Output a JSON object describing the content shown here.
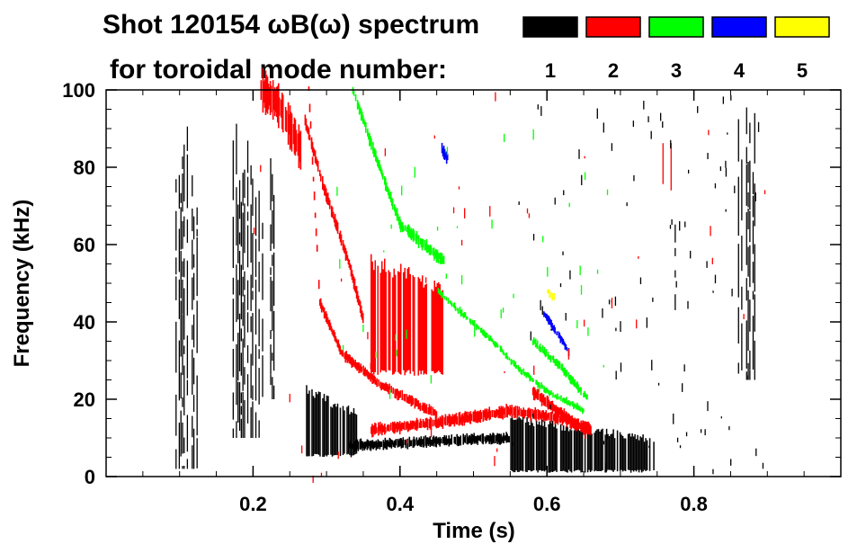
{
  "chart_data": {
    "type": "heatmap",
    "title": "Shot 120154 ωB(ω) spectrum",
    "subtitle": "for toroidal mode number:",
    "xlabel": "Time (s)",
    "ylabel": "Frequency (kHz)",
    "xlim": [
      0.0,
      1.0
    ],
    "ylim": [
      0,
      100
    ],
    "x_ticks": [
      {
        "value": 0.2,
        "label": "0.2"
      },
      {
        "value": 0.4,
        "label": "0.4"
      },
      {
        "value": 0.6,
        "label": "0.6"
      },
      {
        "value": 0.8,
        "label": "0.8"
      }
    ],
    "y_ticks": [
      {
        "value": 0,
        "label": "0"
      },
      {
        "value": 20,
        "label": "20"
      },
      {
        "value": 40,
        "label": "40"
      },
      {
        "value": 60,
        "label": "60"
      },
      {
        "value": 80,
        "label": "80"
      },
      {
        "value": 100,
        "label": "100"
      }
    ],
    "legend": [
      {
        "mode": "1",
        "color": "#000000"
      },
      {
        "mode": "2",
        "color": "#ff0000"
      },
      {
        "mode": "3",
        "color": "#00ff00"
      },
      {
        "mode": "4",
        "color": "#0000ff"
      },
      {
        "mode": "5",
        "color": "#ffff00"
      }
    ],
    "features": [
      {
        "mode": "1",
        "kind": "band",
        "t0": 0.09,
        "t1": 0.125,
        "f0": 2,
        "f1": 95,
        "density": 0.55
      },
      {
        "mode": "1",
        "kind": "band",
        "t0": 0.17,
        "t1": 0.21,
        "f0": 10,
        "f1": 92,
        "density": 0.6
      },
      {
        "mode": "1",
        "kind": "band",
        "t0": 0.21,
        "t1": 0.23,
        "f0": 20,
        "f1": 85,
        "density": 0.45
      },
      {
        "mode": "1",
        "kind": "blob",
        "t0": 0.272,
        "t1": 0.34,
        "f0": 5,
        "f1": 24,
        "density": 0.9
      },
      {
        "mode": "1",
        "kind": "track",
        "t": [
          0.33,
          0.55
        ],
        "f": [
          8,
          10
        ],
        "width": 2.5
      },
      {
        "mode": "1",
        "kind": "blob",
        "t0": 0.55,
        "t1": 0.745,
        "f0": 1,
        "f1": 16,
        "density": 0.8
      },
      {
        "mode": "1",
        "kind": "band",
        "t0": 0.765,
        "t1": 0.78,
        "f0": 40,
        "f1": 70,
        "density": 0.4
      },
      {
        "mode": "1",
        "kind": "band",
        "t0": 0.86,
        "t1": 0.885,
        "f0": 25,
        "f1": 100,
        "density": 0.55
      },
      {
        "mode": "2",
        "kind": "track",
        "t": [
          0.21,
          0.235,
          0.265
        ],
        "f": [
          100,
          96,
          84
        ],
        "width": 10
      },
      {
        "mode": "2",
        "kind": "track",
        "t": [
          0.27,
          0.295,
          0.33,
          0.35
        ],
        "f": [
          92,
          75,
          55,
          40
        ],
        "width": 3
      },
      {
        "mode": "2",
        "kind": "track",
        "t": [
          0.275,
          0.29,
          0.32,
          0.37,
          0.45
        ],
        "f": [
          100,
          45,
          32,
          24,
          16
        ],
        "width": 2.5
      },
      {
        "mode": "2",
        "kind": "track",
        "t": [
          0.36,
          0.45,
          0.55,
          0.62,
          0.66
        ],
        "f": [
          12,
          14,
          17,
          15,
          12
        ],
        "width": 3
      },
      {
        "mode": "2",
        "kind": "blob",
        "t0": 0.358,
        "t1": 0.46,
        "f0": 26,
        "f1": 58,
        "density": 0.75
      },
      {
        "mode": "2",
        "kind": "track",
        "t": [
          0.58,
          0.62,
          0.655
        ],
        "f": [
          22,
          16,
          11
        ],
        "width": 3
      },
      {
        "mode": "2",
        "kind": "band",
        "t0": 0.755,
        "t1": 0.775,
        "f0": 74,
        "f1": 90,
        "density": 0.4
      },
      {
        "mode": "3",
        "kind": "track",
        "t": [
          0.335,
          0.36,
          0.4,
          0.45,
          0.46
        ],
        "f": [
          100,
          86,
          65,
          57,
          56
        ],
        "width": 3
      },
      {
        "mode": "3",
        "kind": "track",
        "t": [
          0.45,
          0.52,
          0.56,
          0.6,
          0.65
        ],
        "f": [
          48,
          36,
          28,
          22,
          17
        ],
        "width": 1.5
      },
      {
        "mode": "3",
        "kind": "track",
        "t": [
          0.58,
          0.62,
          0.655
        ],
        "f": [
          35,
          28,
          20
        ],
        "width": 2
      },
      {
        "mode": "4",
        "kind": "track",
        "t": [
          0.595,
          0.61,
          0.63
        ],
        "f": [
          42,
          38,
          32
        ],
        "width": 2
      },
      {
        "mode": "4",
        "kind": "track",
        "t": [
          0.455,
          0.465
        ],
        "f": [
          85,
          82
        ],
        "width": 3
      },
      {
        "mode": "5",
        "kind": "track",
        "t": [
          0.6,
          0.61
        ],
        "f": [
          48,
          46
        ],
        "width": 2
      }
    ]
  }
}
